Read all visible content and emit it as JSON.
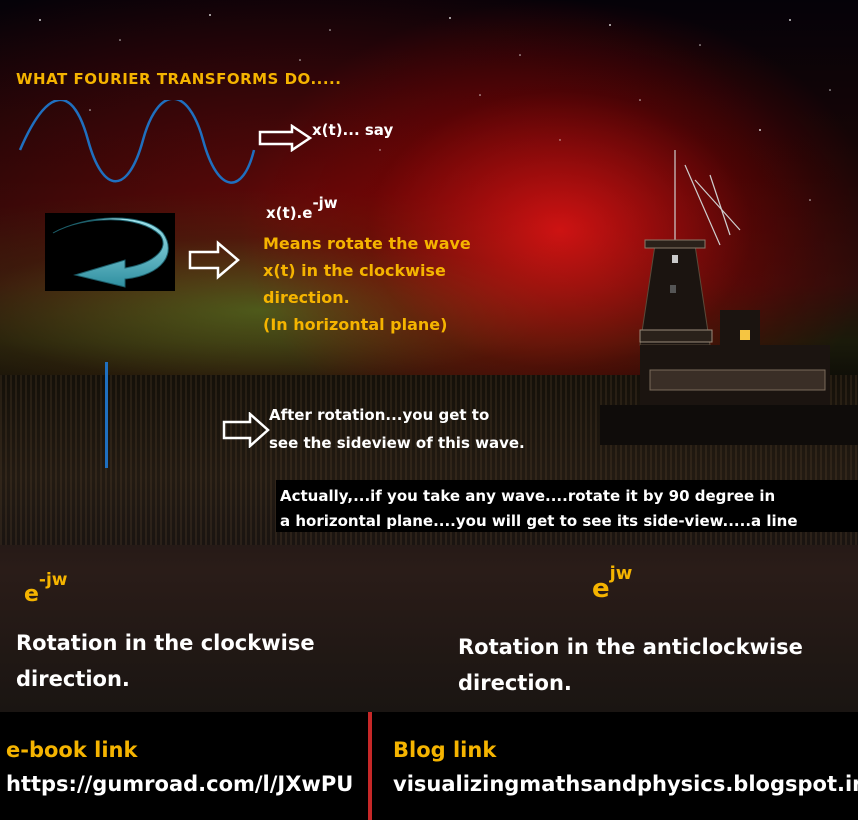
{
  "title": "WHAT FOURIER TRANSFORMS DO.....",
  "step1": {
    "label": "x(t)... say"
  },
  "step2": {
    "formula_base": "x(t).e",
    "formula_exp": "-jw",
    "lines": [
      "Means rotate the wave",
      "x(t) in the clockwise",
      "direction."
    ],
    "note": "(In horizontal plane)"
  },
  "step3": {
    "lines": [
      "After rotation...you get to",
      "see the  sideview of this wave."
    ]
  },
  "caption": {
    "lines": [
      "Actually,...if you take any wave....rotate it by 90 degree in",
      "a horizontal plane....you will get to see its side-view.....a line"
    ]
  },
  "left_exp": {
    "base": "e",
    "sup": "-jw",
    "lines": [
      "Rotation in the clockwise",
      "direction."
    ]
  },
  "right_exp": {
    "base": "e",
    "sup": "jw",
    "lines": [
      "Rotation in the anticlockwise",
      "direction."
    ]
  },
  "footer": {
    "ebook_label": "e-book link",
    "ebook_url": "https://gumroad.com/l/JXwPU",
    "blog_label": "Blog link",
    "blog_url": "visualizingmathsandphysics.blogspot.in"
  },
  "colors": {
    "accent": "#f5b400",
    "wave": "#1f6fbf",
    "divider": "#c62828"
  }
}
